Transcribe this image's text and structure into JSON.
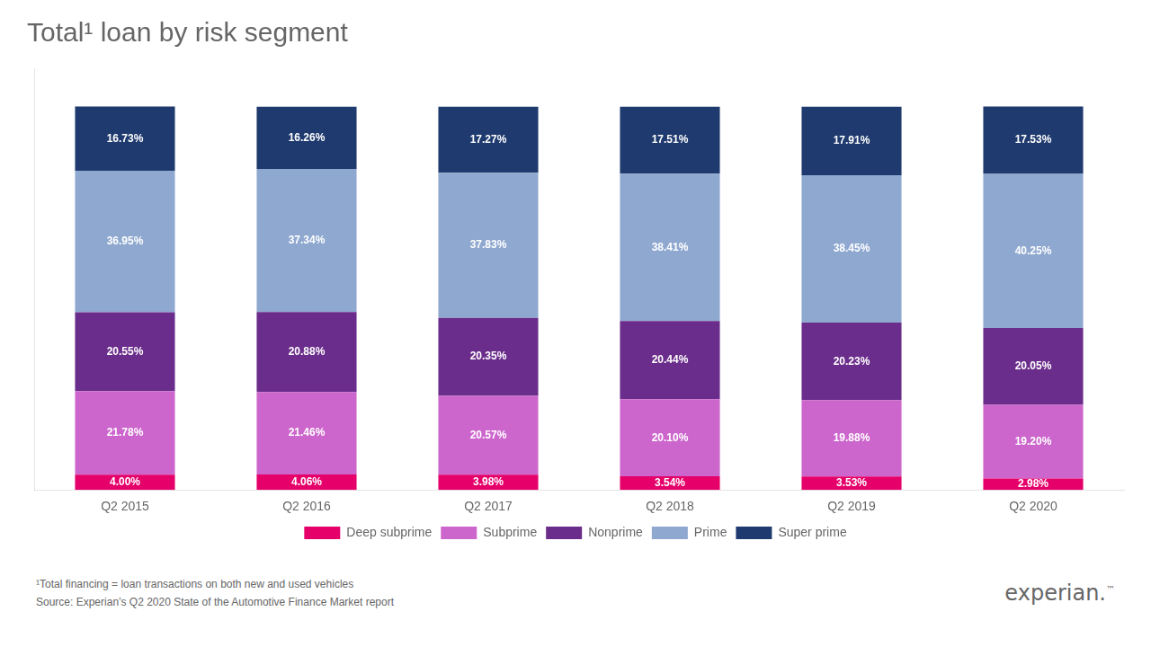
{
  "chart_data": {
    "type": "bar",
    "stacked": true,
    "title": "Total¹ loan by risk segment",
    "categories": [
      "Q2 2015",
      "Q2 2016",
      "Q2 2017",
      "Q2 2018",
      "Q2 2019",
      "Q2 2020"
    ],
    "series": [
      {
        "name": "Deep subprime",
        "color": "#e5006a",
        "values": [
          4.0,
          4.06,
          3.98,
          3.54,
          3.53,
          2.98
        ],
        "value_labels": [
          "4.00%",
          "4.06%",
          "3.98%",
          "3.54%",
          "3.53%",
          "2.98%"
        ]
      },
      {
        "name": "Subprime",
        "color": "#cc66cc",
        "values": [
          21.78,
          21.46,
          20.57,
          20.1,
          19.88,
          19.2
        ],
        "value_labels": [
          "21.78%",
          "21.46%",
          "20.57%",
          "20.10%",
          "19.88%",
          "19.20%"
        ]
      },
      {
        "name": "Nonprime",
        "color": "#6b2d8b",
        "values": [
          20.55,
          20.88,
          20.35,
          20.44,
          20.23,
          20.05
        ],
        "value_labels": [
          "20.55%",
          "20.88%",
          "20.35%",
          "20.44%",
          "20.23%",
          "20.05%"
        ]
      },
      {
        "name": "Prime",
        "color": "#8fa8d0",
        "values": [
          36.95,
          37.34,
          37.83,
          38.41,
          38.45,
          40.25
        ],
        "value_labels": [
          "36.95%",
          "37.34%",
          "37.83%",
          "38.41%",
          "38.45%",
          "40.25%"
        ]
      },
      {
        "name": "Super prime",
        "color": "#1f3a6e",
        "values": [
          16.73,
          16.26,
          17.27,
          17.51,
          17.91,
          17.53
        ],
        "value_labels": [
          "16.73%",
          "16.26%",
          "17.27%",
          "17.51%",
          "17.91%",
          "17.53%"
        ]
      }
    ],
    "ylim": [
      0,
      110
    ],
    "grid": false,
    "legend": "bottom",
    "data_labels": true,
    "tick_labels": "x",
    "annotations": [
      "¹Total financing = loan transactions on both new and used vehicles",
      "Source: Experian’s Q2 2020 State of the Automotive Finance Market report",
      "experian.",
      "™"
    ]
  }
}
